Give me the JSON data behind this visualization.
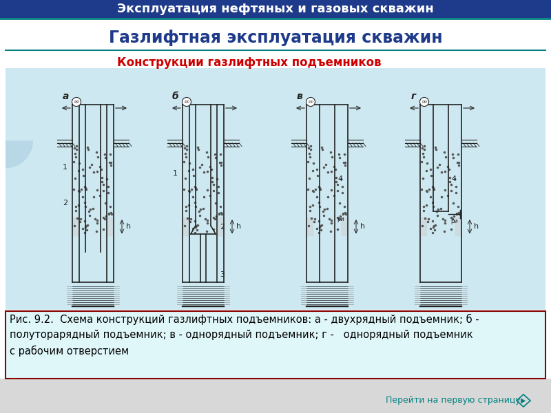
{
  "header_text": "Эксплуатация нефтяных и газовых скважин",
  "header_bg": "#1e3a8a",
  "header_text_color": "#ffffff",
  "header_font_size": 13,
  "title_text": "Газлифтная эксплуатация скважин",
  "title_color": "#1e3a8a",
  "title_font_size": 17,
  "subtitle_text": "Конструкции газлифтных подъемников",
  "subtitle_color": "#cc0000",
  "subtitle_font_size": 12,
  "bg_color": "#d8d8d8",
  "content_bg": "#ffffff",
  "diagram_bg": "#cde8f0",
  "caption_bg": "#e0f7fa",
  "caption_border": "#8b0000",
  "caption_text": "Рис. 9.2.  Схема конструкций газлифтных подъемников: а - двухрядный подъемник; б -\nполуторарядный подъемник; в - однорядный подъемник; г -   однорядный подъемник\nс рабочим отверстием",
  "caption_font_size": 10.5,
  "footer_text": "Перейти на первую страницу",
  "footer_color": "#008080",
  "footer_bg": "#d8d8d8",
  "separator_color": "#008080",
  "fig_width": 8.0,
  "fig_height": 6.0
}
